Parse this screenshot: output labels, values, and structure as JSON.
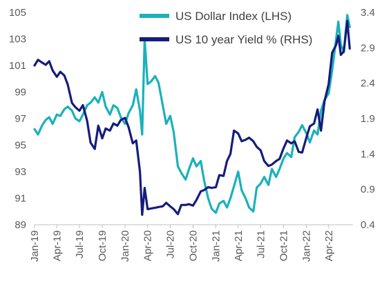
{
  "chart_data": {
    "type": "line",
    "title": "",
    "xlabel": "",
    "ylabel": "",
    "legend_position": "top-right",
    "x_tick_labels": [
      "Jan-19",
      "Apr-19",
      "Jul-19",
      "Oct-19",
      "Jan-20",
      "Apr-20",
      "Jul-20",
      "Oct-20",
      "Jan-21",
      "Apr-21",
      "Jul-21",
      "Oct-21",
      "Jan-22",
      "Apr-22"
    ],
    "y_left": {
      "ticks": [
        89,
        91,
        93,
        95,
        97,
        99,
        101,
        103,
        105
      ],
      "ylim": [
        89,
        105
      ]
    },
    "y_right": {
      "ticks": [
        "0.4",
        "0.9",
        "1.4",
        "1.9",
        "2.4",
        "2.9",
        "3.4"
      ],
      "ylim": [
        0.4,
        3.4
      ]
    },
    "series": [
      {
        "name": "US Dollar Index (LHS)",
        "axis": "left",
        "color": "#1bb1b9",
        "points": [
          [
            "2019-01-01",
            96.2
          ],
          [
            "2019-01-15",
            95.8
          ],
          [
            "2019-02-01",
            96.5
          ],
          [
            "2019-02-15",
            96.9
          ],
          [
            "2019-03-01",
            97.1
          ],
          [
            "2019-03-15",
            96.6
          ],
          [
            "2019-04-01",
            97.3
          ],
          [
            "2019-04-15",
            97.2
          ],
          [
            "2019-05-01",
            97.7
          ],
          [
            "2019-05-15",
            97.9
          ],
          [
            "2019-06-01",
            97.6
          ],
          [
            "2019-06-15",
            97.0
          ],
          [
            "2019-07-01",
            96.8
          ],
          [
            "2019-07-15",
            97.3
          ],
          [
            "2019-08-01",
            98.0
          ],
          [
            "2019-08-15",
            98.2
          ],
          [
            "2019-09-01",
            98.6
          ],
          [
            "2019-09-15",
            98.2
          ],
          [
            "2019-10-01",
            99.0
          ],
          [
            "2019-10-15",
            97.9
          ],
          [
            "2019-11-01",
            97.3
          ],
          [
            "2019-11-15",
            98.0
          ],
          [
            "2019-12-01",
            97.8
          ],
          [
            "2019-12-15",
            97.1
          ],
          [
            "2020-01-01",
            96.6
          ],
          [
            "2020-01-15",
            97.4
          ],
          [
            "2020-02-01",
            98.0
          ],
          [
            "2020-02-15",
            99.2
          ],
          [
            "2020-03-01",
            97.6
          ],
          [
            "2020-03-10",
            95.8
          ],
          [
            "2020-03-20",
            103.0
          ],
          [
            "2020-04-01",
            99.6
          ],
          [
            "2020-04-15",
            99.8
          ],
          [
            "2020-05-01",
            100.2
          ],
          [
            "2020-05-15",
            99.7
          ],
          [
            "2020-06-01",
            98.0
          ],
          [
            "2020-06-15",
            96.6
          ],
          [
            "2020-07-01",
            97.2
          ],
          [
            "2020-07-15",
            96.0
          ],
          [
            "2020-08-01",
            93.4
          ],
          [
            "2020-08-15",
            92.9
          ],
          [
            "2020-09-01",
            92.4
          ],
          [
            "2020-09-15",
            93.2
          ],
          [
            "2020-10-01",
            94.0
          ],
          [
            "2020-10-15",
            93.4
          ],
          [
            "2020-11-01",
            93.8
          ],
          [
            "2020-11-15",
            92.3
          ],
          [
            "2020-12-01",
            91.0
          ],
          [
            "2020-12-15",
            90.2
          ],
          [
            "2021-01-01",
            89.9
          ],
          [
            "2021-01-15",
            90.6
          ],
          [
            "2021-02-01",
            90.8
          ],
          [
            "2021-02-15",
            90.3
          ],
          [
            "2021-03-01",
            91.0
          ],
          [
            "2021-03-15",
            91.9
          ],
          [
            "2021-04-01",
            93.0
          ],
          [
            "2021-04-15",
            91.6
          ],
          [
            "2021-05-01",
            91.0
          ],
          [
            "2021-05-15",
            90.3
          ],
          [
            "2021-06-01",
            90.0
          ],
          [
            "2021-06-15",
            91.8
          ],
          [
            "2021-07-01",
            92.1
          ],
          [
            "2021-07-15",
            92.6
          ],
          [
            "2021-08-01",
            92.0
          ],
          [
            "2021-08-15",
            93.2
          ],
          [
            "2021-09-01",
            92.6
          ],
          [
            "2021-09-15",
            93.2
          ],
          [
            "2021-10-01",
            94.0
          ],
          [
            "2021-10-15",
            94.4
          ],
          [
            "2021-11-01",
            94.1
          ],
          [
            "2021-11-15",
            95.6
          ],
          [
            "2021-12-01",
            96.0
          ],
          [
            "2021-12-15",
            96.5
          ],
          [
            "2022-01-01",
            95.9
          ],
          [
            "2022-01-15",
            95.2
          ],
          [
            "2022-02-01",
            96.1
          ],
          [
            "2022-02-15",
            95.8
          ],
          [
            "2022-03-01",
            97.6
          ],
          [
            "2022-03-15",
            98.4
          ],
          [
            "2022-04-01",
            98.9
          ],
          [
            "2022-04-15",
            100.6
          ],
          [
            "2022-05-01",
            103.0
          ],
          [
            "2022-05-10",
            104.3
          ],
          [
            "2022-05-20",
            102.6
          ],
          [
            "2022-06-01",
            102.0
          ],
          [
            "2022-06-15",
            104.8
          ],
          [
            "2022-06-25",
            103.9
          ]
        ]
      },
      {
        "name": "US 10 year Yield % (RHS)",
        "axis": "right",
        "color": "#141c7c",
        "points": [
          [
            "2019-01-01",
            2.65
          ],
          [
            "2019-01-15",
            2.73
          ],
          [
            "2019-02-01",
            2.69
          ],
          [
            "2019-02-15",
            2.66
          ],
          [
            "2019-03-01",
            2.71
          ],
          [
            "2019-03-15",
            2.58
          ],
          [
            "2019-04-01",
            2.49
          ],
          [
            "2019-04-15",
            2.56
          ],
          [
            "2019-05-01",
            2.51
          ],
          [
            "2019-05-15",
            2.38
          ],
          [
            "2019-06-01",
            2.12
          ],
          [
            "2019-06-15",
            2.06
          ],
          [
            "2019-07-01",
            2.01
          ],
          [
            "2019-07-15",
            2.09
          ],
          [
            "2019-08-01",
            1.87
          ],
          [
            "2019-08-15",
            1.56
          ],
          [
            "2019-09-01",
            1.47
          ],
          [
            "2019-09-15",
            1.8
          ],
          [
            "2019-10-01",
            1.62
          ],
          [
            "2019-10-15",
            1.76
          ],
          [
            "2019-11-01",
            1.73
          ],
          [
            "2019-11-15",
            1.83
          ],
          [
            "2019-12-01",
            1.8
          ],
          [
            "2019-12-15",
            1.88
          ],
          [
            "2020-01-01",
            1.91
          ],
          [
            "2020-01-15",
            1.78
          ],
          [
            "2020-02-01",
            1.55
          ],
          [
            "2020-02-15",
            1.59
          ],
          [
            "2020-03-01",
            1.15
          ],
          [
            "2020-03-10",
            0.54
          ],
          [
            "2020-03-20",
            0.92
          ],
          [
            "2020-04-01",
            0.62
          ],
          [
            "2020-04-15",
            0.63
          ],
          [
            "2020-05-01",
            0.64
          ],
          [
            "2020-05-15",
            0.65
          ],
          [
            "2020-06-01",
            0.66
          ],
          [
            "2020-06-15",
            0.71
          ],
          [
            "2020-07-01",
            0.66
          ],
          [
            "2020-07-15",
            0.62
          ],
          [
            "2020-08-01",
            0.55
          ],
          [
            "2020-08-15",
            0.68
          ],
          [
            "2020-09-01",
            0.68
          ],
          [
            "2020-09-15",
            0.69
          ],
          [
            "2020-10-01",
            0.67
          ],
          [
            "2020-10-15",
            0.75
          ],
          [
            "2020-11-01",
            0.87
          ],
          [
            "2020-11-15",
            0.89
          ],
          [
            "2020-12-01",
            0.93
          ],
          [
            "2020-12-15",
            0.92
          ],
          [
            "2021-01-01",
            0.93
          ],
          [
            "2021-01-15",
            1.1
          ],
          [
            "2021-02-01",
            1.09
          ],
          [
            "2021-02-15",
            1.3
          ],
          [
            "2021-03-01",
            1.4
          ],
          [
            "2021-03-15",
            1.73
          ],
          [
            "2021-04-01",
            1.69
          ],
          [
            "2021-04-15",
            1.58
          ],
          [
            "2021-05-01",
            1.6
          ],
          [
            "2021-05-15",
            1.63
          ],
          [
            "2021-06-01",
            1.58
          ],
          [
            "2021-06-15",
            1.5
          ],
          [
            "2021-07-01",
            1.45
          ],
          [
            "2021-07-15",
            1.3
          ],
          [
            "2021-08-01",
            1.23
          ],
          [
            "2021-08-15",
            1.25
          ],
          [
            "2021-09-01",
            1.3
          ],
          [
            "2021-09-15",
            1.33
          ],
          [
            "2021-10-01",
            1.48
          ],
          [
            "2021-10-15",
            1.59
          ],
          [
            "2021-11-01",
            1.55
          ],
          [
            "2021-11-15",
            1.58
          ],
          [
            "2021-12-01",
            1.43
          ],
          [
            "2021-12-15",
            1.42
          ],
          [
            "2022-01-01",
            1.63
          ],
          [
            "2022-01-15",
            1.79
          ],
          [
            "2022-02-01",
            1.83
          ],
          [
            "2022-02-15",
            2.03
          ],
          [
            "2022-03-01",
            1.73
          ],
          [
            "2022-03-15",
            2.14
          ],
          [
            "2022-04-01",
            2.39
          ],
          [
            "2022-04-15",
            2.83
          ],
          [
            "2022-05-01",
            2.94
          ],
          [
            "2022-05-10",
            3.07
          ],
          [
            "2022-05-20",
            2.8
          ],
          [
            "2022-06-01",
            2.85
          ],
          [
            "2022-06-15",
            3.28
          ],
          [
            "2022-06-25",
            2.89
          ]
        ]
      }
    ]
  }
}
